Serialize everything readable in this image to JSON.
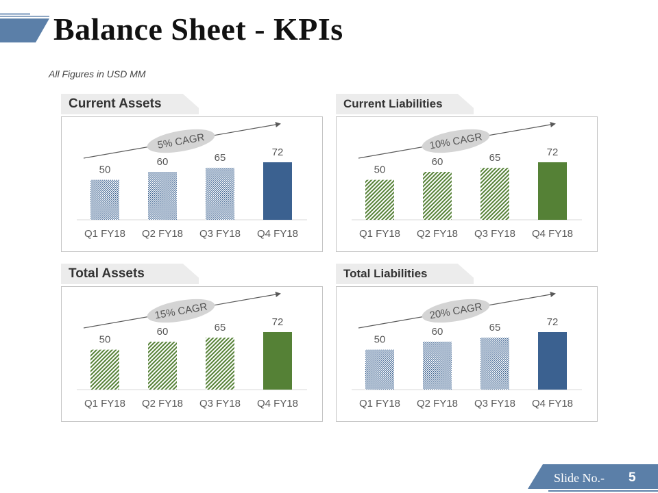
{
  "slide": {
    "title": "Balance Sheet - KPIs",
    "subtitle": "All Figures in USD MM",
    "footer_label": "Slide No.-",
    "slide_number": "5"
  },
  "colors": {
    "blue": "#3b6190",
    "green": "#558136",
    "accent": "#5b7fa8",
    "tab_bg": "#ececec"
  },
  "chart_data": [
    {
      "type": "bar",
      "title": "Current Assets",
      "categories": [
        "Q1 FY18",
        "Q2 FY18",
        "Q3 FY18",
        "Q4 FY18"
      ],
      "values": [
        50,
        60,
        65,
        72
      ],
      "annotation": "5% CAGR",
      "fill": "blue",
      "patterns": [
        "dots",
        "dots",
        "dots",
        "solid"
      ],
      "ylim": [
        0,
        72
      ]
    },
    {
      "type": "bar",
      "title": "Current Liabilities",
      "categories": [
        "Q1 FY18",
        "Q2 FY18",
        "Q3 FY18",
        "Q4 FY18"
      ],
      "values": [
        50,
        60,
        65,
        72
      ],
      "annotation": "10% CAGR",
      "fill": "green",
      "patterns": [
        "stripes",
        "stripes",
        "stripes",
        "solid"
      ],
      "ylim": [
        0,
        72
      ]
    },
    {
      "type": "bar",
      "title": "Total Assets",
      "categories": [
        "Q1 FY18",
        "Q2 FY18",
        "Q3 FY18",
        "Q4 FY18"
      ],
      "values": [
        50,
        60,
        65,
        72
      ],
      "annotation": "15% CAGR",
      "fill": "green",
      "patterns": [
        "stripes",
        "stripes",
        "stripes",
        "solid"
      ],
      "ylim": [
        0,
        72
      ]
    },
    {
      "type": "bar",
      "title": "Total Liabilities",
      "categories": [
        "Q1 FY18",
        "Q2 FY18",
        "Q3 FY18",
        "Q4 FY18"
      ],
      "values": [
        50,
        60,
        65,
        72
      ],
      "annotation": "20% CAGR",
      "fill": "blue",
      "patterns": [
        "dots",
        "dots",
        "dots",
        "solid"
      ],
      "ylim": [
        0,
        72
      ]
    }
  ]
}
